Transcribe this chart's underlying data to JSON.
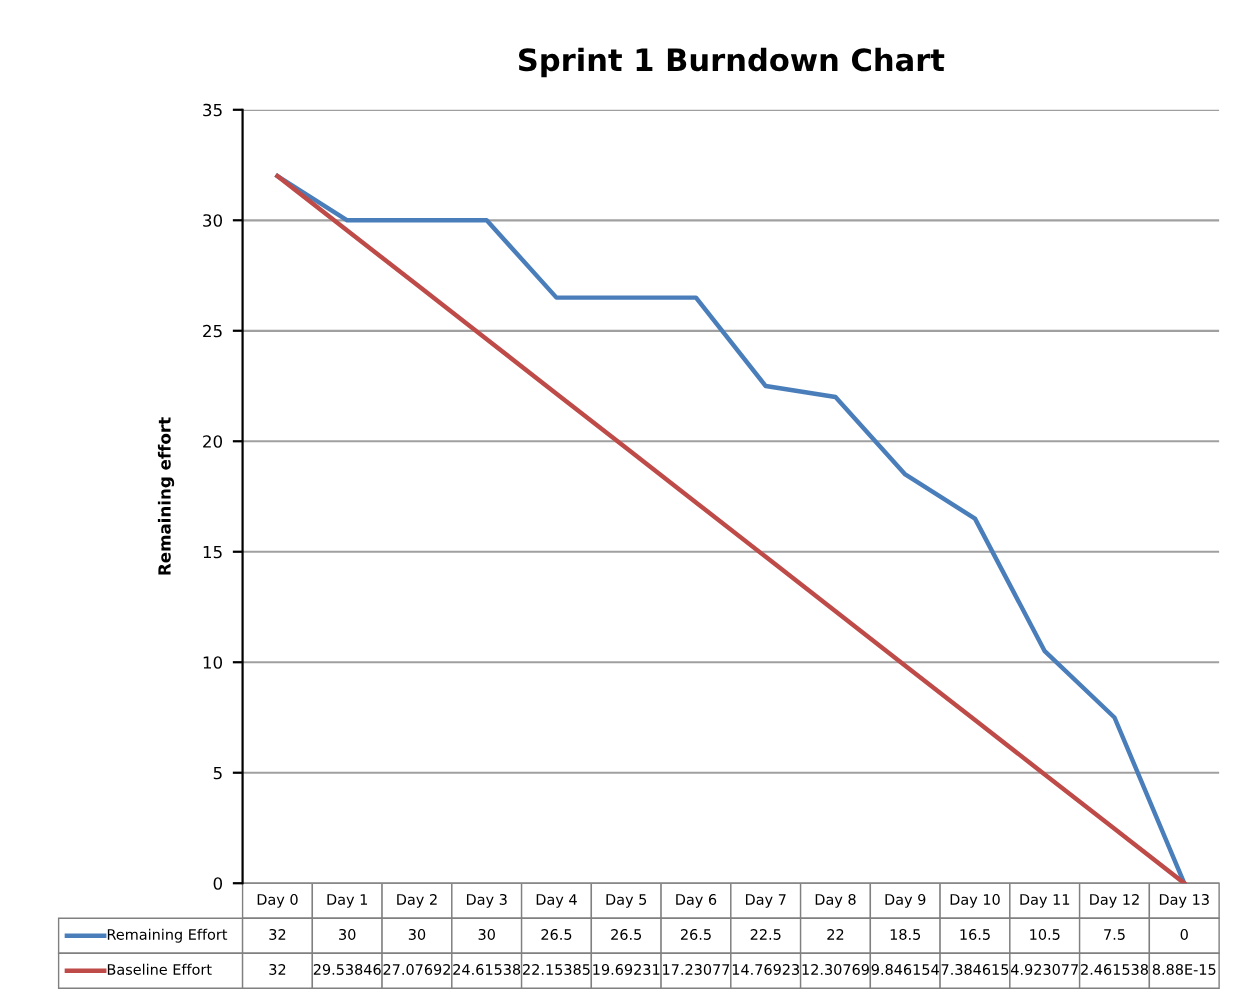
{
  "chart_data": {
    "type": "line",
    "title": "Sprint 1 Burndown Chart",
    "ylabel": "Remaining effort",
    "categories": [
      "Day 0",
      "Day 1",
      "Day 2",
      "Day 3",
      "Day 4",
      "Day 5",
      "Day 6",
      "Day 7",
      "Day 8",
      "Day 9",
      "Day 10",
      "Day 11",
      "Day 12",
      "Day 13"
    ],
    "series": [
      {
        "name": "Remaining Effort",
        "color": "#4a7ebb",
        "values": [
          32,
          30,
          30,
          30,
          26.5,
          26.5,
          26.5,
          22.5,
          22,
          18.5,
          16.5,
          10.5,
          7.5,
          0
        ],
        "value_labels": [
          "32",
          "30",
          "30",
          "30",
          "26.5",
          "26.5",
          "26.5",
          "22.5",
          "22",
          "18.5",
          "16.5",
          "10.5",
          "7.5",
          "0"
        ]
      },
      {
        "name": "Baseline Effort",
        "color": "#be4b48",
        "values": [
          32,
          29.53846,
          27.07692,
          24.61538,
          22.15385,
          19.69231,
          17.23077,
          14.76923,
          12.30769,
          9.846154,
          7.384615,
          4.923077,
          2.461538,
          8.88e-15
        ],
        "value_labels": [
          "32",
          "29.53846",
          "27.07692",
          "24.61538",
          "22.15385",
          "19.69231",
          "17.23077",
          "14.76923",
          "12.30769",
          "9.846154",
          "7.384615",
          "4.923077",
          "2.461538",
          "8.88E-15"
        ]
      }
    ],
    "ylim": [
      0,
      35
    ],
    "yticks": [
      0,
      5,
      10,
      15,
      20,
      25,
      30,
      35
    ],
    "grid": "y",
    "legend": "bottom",
    "marker": "none",
    "line_style": "solid"
  }
}
